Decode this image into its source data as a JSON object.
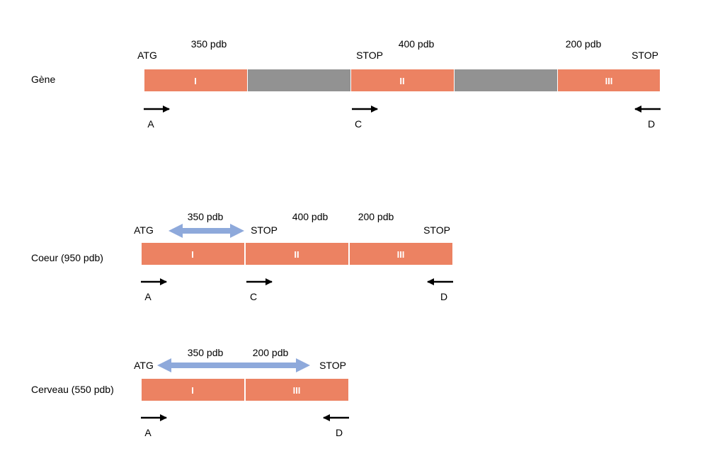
{
  "colors": {
    "exon": "#EC8262",
    "intron": "#929292",
    "exon_label": "#ffffff",
    "double_arrow": "#8EA9DB",
    "primer_arrow": "#000000"
  },
  "rows": [
    {
      "row_label": "Gène",
      "exons": [
        "I",
        "II",
        "III"
      ],
      "introns": 2,
      "sizes": [
        "350 pdb",
        "400 pdb",
        "200 pdb"
      ],
      "atg": "ATG",
      "stops": [
        "STOP",
        "STOP"
      ],
      "primers": [
        "A",
        "C",
        "D"
      ]
    },
    {
      "row_label": "Coeur (950 pdb)",
      "exons": [
        "I",
        "II",
        "III"
      ],
      "sizes": [
        "350 pdb",
        "400 pdb",
        "200 pdb"
      ],
      "atg": "ATG",
      "stops": [
        "STOP",
        "STOP"
      ],
      "primers": [
        "A",
        "C",
        "D"
      ]
    },
    {
      "row_label": "Cerveau (550 pdb)",
      "exons": [
        "I",
        "III"
      ],
      "sizes": [
        "350 pdb",
        "200 pdb"
      ],
      "atg": "ATG",
      "stops": [
        "STOP"
      ],
      "primers": [
        "A",
        "D"
      ]
    }
  ]
}
